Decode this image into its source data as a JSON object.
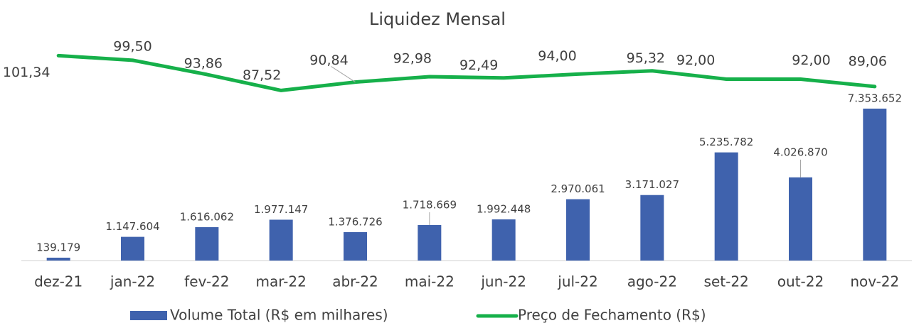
{
  "chart_data": {
    "type": "bar-line",
    "title": "Liquidez Mensal",
    "categories": [
      "dez-21",
      "jan-22",
      "fev-22",
      "mar-22",
      "abr-22",
      "mai-22",
      "jun-22",
      "jul-22",
      "ago-22",
      "set-22",
      "out-22",
      "nov-22"
    ],
    "series": [
      {
        "name": "Volume Total (R$ em milhares)",
        "type": "bar",
        "color": "#3f62ad",
        "values": [
          139179,
          1147604,
          1616062,
          1977147,
          1376726,
          1718669,
          1992448,
          2970061,
          3171027,
          5235782,
          4026870,
          7353652
        ],
        "value_labels": [
          "139.179",
          "1.147.604",
          "1.616.062",
          "1.977.147",
          "1.376.726",
          "1.718.669",
          "1.992.448",
          "2.970.061",
          "3.171.027",
          "5.235.782",
          "4.026.870",
          "7.353.652"
        ]
      },
      {
        "name": "Preço de Fechamento (R$)",
        "type": "line",
        "axis": "y2",
        "color": "#16b04a",
        "values": [
          101.34,
          99.5,
          93.86,
          87.52,
          90.84,
          92.98,
          92.49,
          94.0,
          95.32,
          92.0,
          92.0,
          89.06
        ],
        "value_labels": [
          "101,34",
          "99,50",
          "93,86",
          "87,52",
          "90,84",
          "92,98",
          "92,49",
          "94,00",
          "95,32",
          "92,00",
          "92,00",
          "89,06"
        ]
      }
    ],
    "ylim": [
      0,
      10000000
    ],
    "y2lim": [
      20,
      102
    ],
    "legend": "bottom"
  }
}
